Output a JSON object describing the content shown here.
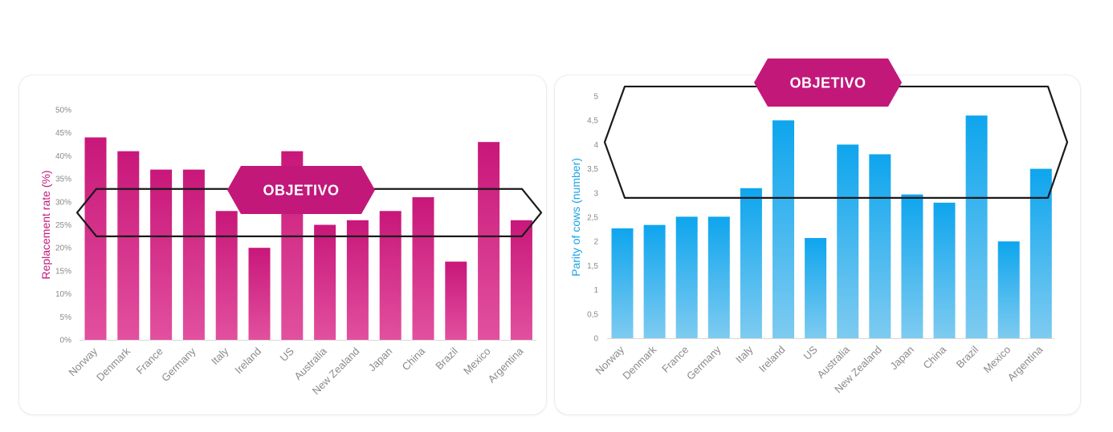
{
  "chart_data": [
    {
      "type": "bar",
      "ylabel": "Replacement rate (%)",
      "ylabel_color": "#c2187a",
      "categories": [
        "Norway",
        "Denmark",
        "France",
        "Germany",
        "Italy",
        "Ireland",
        "US",
        "Australia",
        "New Zealand",
        "Japan",
        "China",
        "Brazil",
        "Mexico",
        "Argentina"
      ],
      "values": [
        44,
        41,
        37,
        37,
        28,
        20,
        41,
        25,
        26,
        28,
        31,
        17,
        43,
        26
      ],
      "ylim": [
        0,
        50
      ],
      "yticks": [
        0,
        5,
        10,
        15,
        20,
        25,
        30,
        35,
        40,
        45,
        50
      ],
      "ytick_labels": [
        "0%",
        "5%",
        "10%",
        "15%",
        "20%",
        "25%",
        "30%",
        "35%",
        "40%",
        "45%",
        "50%"
      ],
      "bar_color_top": "#c8177a",
      "bar_color_bottom": "#e2509e",
      "target_band": [
        22.5,
        32.8
      ],
      "annotation": "OBJETIVO"
    },
    {
      "type": "bar",
      "ylabel": "Parity of cows (number)",
      "ylabel_color": "#1aa3e6",
      "categories": [
        "Norway",
        "Denmark",
        "France",
        "Germany",
        "Italy",
        "Ireland",
        "US",
        "Australia",
        "New Zealand",
        "Japan",
        "China",
        "Brazil",
        "Mexico",
        "Argentina"
      ],
      "values": [
        2.27,
        2.34,
        2.51,
        2.51,
        3.1,
        4.5,
        2.07,
        4.0,
        3.8,
        2.97,
        2.8,
        4.6,
        2.0,
        3.5
      ],
      "ylim": [
        0,
        5
      ],
      "yticks": [
        0,
        0.5,
        1,
        1.5,
        2,
        2.5,
        3,
        3.5,
        4,
        4.5,
        5
      ],
      "ytick_labels": [
        "0",
        "0,5",
        "1",
        "1,5",
        "2",
        "2,5",
        "3",
        "3,5",
        "4",
        "4,5",
        "5"
      ],
      "bar_color_top": "#0ea5ee",
      "bar_color_bottom": "#7ecbf0",
      "target_band": [
        2.9,
        5.2
      ],
      "annotation": "OBJETIVO"
    }
  ],
  "badge_color": "#c2187a"
}
